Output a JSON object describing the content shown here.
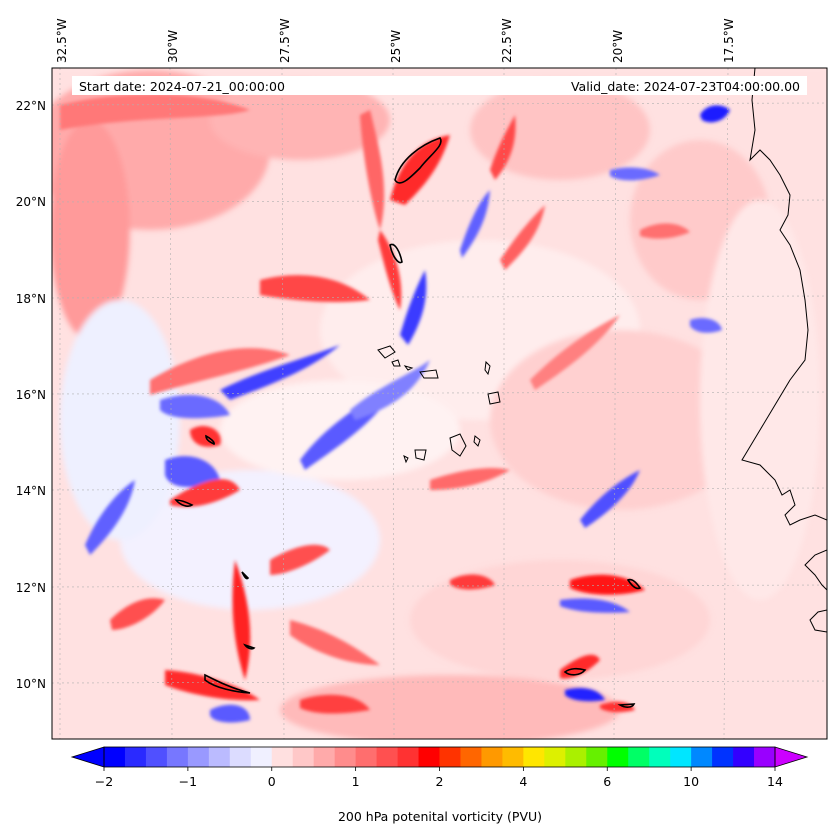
{
  "map": {
    "start_label": "Start date: 2024-07-21_00:00:00",
    "valid_label": "Valid_date: 2024-07-23T04:00:00.00",
    "lon_ticks": [
      "32.5°W",
      "30°W",
      "27.5°W",
      "25°W",
      "22.5°W",
      "20°W",
      "17.5°W"
    ],
    "lat_ticks": [
      "22°N",
      "20°N",
      "18°N",
      "16°N",
      "14°N",
      "12°N",
      "10°N"
    ],
    "colors": {
      "coastline": "#000000",
      "contour": "#000000",
      "gridline": "#b0b0b0",
      "background_field": "#ffe3e3"
    }
  },
  "colorbar": {
    "label": "200 hPa potenital vorticity (PVU)",
    "tick_labels": [
      "−2",
      "−1",
      "0",
      "1",
      "2",
      "4",
      "6",
      "10",
      "14"
    ],
    "colors": [
      "#0000ff",
      "#2a2aff",
      "#5050ff",
      "#7777ff",
      "#9999ff",
      "#bbbbff",
      "#dcdcff",
      "#f0f0ff",
      "#ffe0e0",
      "#ffc8c8",
      "#ffaaaa",
      "#ff8c8c",
      "#ff6e6e",
      "#ff5050",
      "#ff3232",
      "#ff0000",
      "#ff3300",
      "#ff6600",
      "#ff9900",
      "#ffbb00",
      "#ffe600",
      "#ddf000",
      "#aaf000",
      "#66f000",
      "#00ff00",
      "#00ff66",
      "#00ffbb",
      "#00e6ff",
      "#0088ff",
      "#0033ff",
      "#3300ff",
      "#9900ff"
    ],
    "under_color": "#0000ff",
    "over_color": "#cc00ff"
  }
}
